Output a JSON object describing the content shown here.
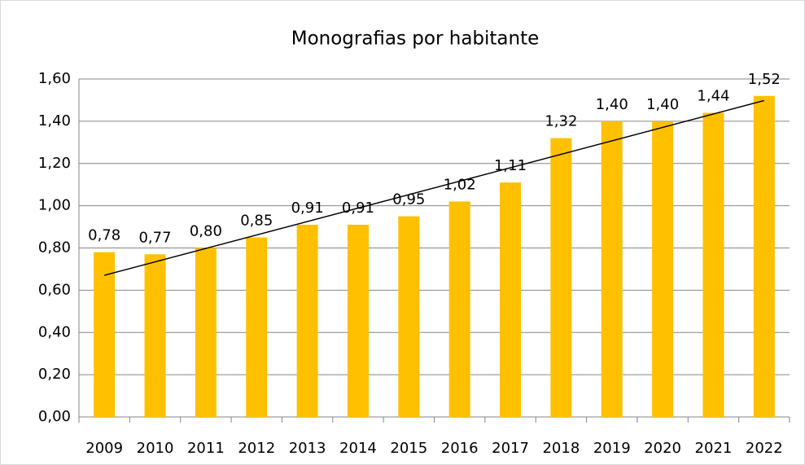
{
  "chart_data": {
    "type": "bar",
    "title": "Monografias por habitante",
    "categories": [
      "2009",
      "2010",
      "2011",
      "2012",
      "2013",
      "2014",
      "2015",
      "2016",
      "2017",
      "2018",
      "2019",
      "2020",
      "2021",
      "2022"
    ],
    "values": [
      0.78,
      0.77,
      0.8,
      0.85,
      0.91,
      0.91,
      0.95,
      1.02,
      1.11,
      1.32,
      1.4,
      1.4,
      1.44,
      1.52
    ],
    "value_labels": [
      "0,78",
      "0,77",
      "0,80",
      "0,85",
      "0,91",
      "0,91",
      "0,95",
      "1,02",
      "1,11",
      "1,32",
      "1,40",
      "1,40",
      "1,44",
      "1,52"
    ],
    "color": "#ffc000",
    "ylim": [
      0,
      1.6
    ],
    "yticks": [
      {
        "value": 0,
        "label": "0,00"
      },
      {
        "value": 0.2,
        "label": "0,20"
      },
      {
        "value": 0.4,
        "label": "0,40"
      },
      {
        "value": 0.6,
        "label": "0,60"
      },
      {
        "value": 0.8,
        "label": "0,80"
      },
      {
        "value": 1.0,
        "label": "1,00"
      },
      {
        "value": 1.2,
        "label": "1,20"
      },
      {
        "value": 1.4,
        "label": "1,40"
      },
      {
        "value": 1.6,
        "label": "1,60"
      }
    ],
    "grid": true,
    "trendline": "linear"
  }
}
